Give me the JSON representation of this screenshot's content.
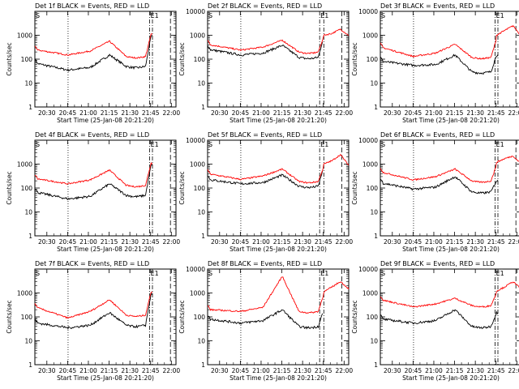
{
  "chart_data": {
    "type": "line",
    "layout": "3x3 grid",
    "xlabel": "Start Time (25-Jan-08 20:21:20)",
    "ylabel": "Counts/sec",
    "x_ticks": [
      "20:30",
      "20:45",
      "21:00",
      "21:15",
      "21:30",
      "21:45",
      "22:00"
    ],
    "x_tick_minutes": [
      8.67,
      23.67,
      38.67,
      53.67,
      68.67,
      83.67,
      98.67
    ],
    "xlim_minutes": [
      0,
      102
    ],
    "y_scale": "log",
    "ylim": [
      1,
      10000
    ],
    "y_ticks": [
      "1",
      "10",
      "100",
      "1000",
      "10000"
    ],
    "y_tick_values": [
      1,
      10,
      100,
      1000,
      10000
    ],
    "series_colors": {
      "events": "#000000",
      "lld": "#ff0000"
    },
    "marker_labels": [
      "S",
      "E"
    ],
    "panels": [
      {
        "title": "Det 1f BLACK = Events, RED = LLD",
        "top_tick": "1000",
        "markers": {
          "dotted": 24,
          "end_label": "E1",
          "dashdot": [
            83,
            85
          ],
          "dashed": 98
        },
        "events": {
          "start": 65,
          "dip1": 35,
          "mid": 45,
          "peak": 150,
          "min": 50,
          "spike": 900
        },
        "events_end_min": 85,
        "lld": {
          "start": 240,
          "dip1": 150,
          "mid": 220,
          "peak": 560,
          "min": 130,
          "spike": 1100
        },
        "lld_end_min": 85
      },
      {
        "title": "Det 2f BLACK = Events, RED = LLD",
        "top_tick": "10000",
        "markers": {
          "dotted": 24,
          "end_label": "E1",
          "dashdot": [
            81,
            84
          ],
          "dashed": 97
        },
        "events": {
          "start": 250,
          "dip1": 150,
          "mid": 180,
          "peak": 380,
          "min": 120,
          "spike": 900
        },
        "events_end_min": 83,
        "lld": {
          "start": 400,
          "dip1": 240,
          "mid": 320,
          "peak": 620,
          "min": 200,
          "spike": 900,
          "tail": [
            1000,
            1200,
            1800,
            1000
          ]
        },
        "lld_end_min": 102
      },
      {
        "title": "Det 3f BLACK = Events, RED = LLD",
        "top_tick": "10000",
        "markers": {
          "dotted": 24,
          "end_label": "E1",
          "dashdot": [
            83,
            85
          ],
          "dashed": 98
        },
        "events": {
          "start": 80,
          "dip1": 55,
          "mid": 60,
          "peak": 150,
          "min": 30,
          "spike": 150
        },
        "events_end_min": 85,
        "lld": {
          "start": 300,
          "dip1": 130,
          "mid": 180,
          "peak": 420,
          "min": 120,
          "spike": 700,
          "tail": [
            1000,
            1600,
            2500,
            900
          ]
        },
        "lld_end_min": 102
      },
      {
        "title": "Det 4f BLACK = Events, RED = LLD",
        "top_tick": "1000",
        "markers": {
          "dotted": 24,
          "end_label": "E1",
          "dashdot": [
            83,
            85
          ],
          "dashed": 98
        },
        "events": {
          "start": 65,
          "dip1": 35,
          "mid": 45,
          "peak": 150,
          "min": 50,
          "spike": 900
        },
        "events_end_min": 85,
        "lld": {
          "start": 240,
          "dip1": 150,
          "mid": 220,
          "peak": 560,
          "min": 130,
          "spike": 1100
        },
        "lld_end_min": 85
      },
      {
        "title": "Det 5f BLACK = Events, RED = LLD",
        "top_tick": "10000",
        "markers": {
          "dotted": 24,
          "end_label": "E1",
          "dashdot": [
            81,
            84
          ],
          "dashed": 97
        },
        "events": {
          "start": 220,
          "dip1": 150,
          "mid": 170,
          "peak": 350,
          "min": 120,
          "spike": 800
        },
        "events_end_min": 83,
        "lld": {
          "start": 380,
          "dip1": 230,
          "mid": 320,
          "peak": 620,
          "min": 190,
          "spike": 800,
          "tail": [
            1000,
            1400,
            2500,
            900
          ]
        },
        "lld_end_min": 102
      },
      {
        "title": "Det 6f BLACK = Events, RED = LLD",
        "top_tick": "10000",
        "markers": {
          "dotted": 24,
          "end_label": "E1",
          "dashdot": [
            83,
            85
          ],
          "dashed": 98
        },
        "events": {
          "start": 160,
          "dip1": 90,
          "mid": 110,
          "peak": 300,
          "min": 70,
          "spike": 200
        },
        "events_end_min": 85,
        "lld": {
          "start": 450,
          "dip1": 220,
          "mid": 300,
          "peak": 620,
          "min": 200,
          "spike": 900,
          "tail": [
            1200,
            1700,
            2200,
            1000
          ]
        },
        "lld_end_min": 102
      },
      {
        "title": "Det 7f BLACK = Events, RED = LLD",
        "top_tick": "1000",
        "markers": {
          "dotted": 24,
          "end_label": "E1",
          "dashdot": [
            83,
            85
          ],
          "dashed": 98
        },
        "events": {
          "start": 55,
          "dip1": 35,
          "mid": 45,
          "peak": 150,
          "min": 45,
          "spike": 900
        },
        "events_end_min": 85,
        "lld": {
          "start": 240,
          "dip1": 90,
          "mid": 170,
          "peak": 520,
          "min": 120,
          "spike": 1100
        },
        "lld_end_min": 85
      },
      {
        "title": "Det 8f BLACK = Events, RED = LLD",
        "top_tick": "10000",
        "markers": {
          "dotted": 24,
          "end_label": "E1",
          "dashdot": [
            81,
            84
          ],
          "dashed": 97
        },
        "events": {
          "start": 80,
          "dip1": 55,
          "mid": 70,
          "peak": 200,
          "min": 40,
          "spike": 200
        },
        "events_end_min": 83,
        "lld": {
          "start": 200,
          "dip1": 170,
          "mid": 250,
          "peak": 5000,
          "min": 170,
          "spike": 900,
          "tail": [
            1100,
            1800,
            3000,
            1500
          ]
        },
        "lld_end_min": 102
      },
      {
        "title": "Det 9f BLACK = Events, RED = LLD",
        "top_tick": "10000",
        "markers": {
          "dotted": 24,
          "end_label": "E1",
          "dashdot": [
            83,
            85
          ],
          "dashed": 98
        },
        "events": {
          "start": 80,
          "dip1": 55,
          "mid": 70,
          "peak": 200,
          "min": 40,
          "spike": 150
        },
        "events_end_min": 85,
        "lld": {
          "start": 500,
          "dip1": 260,
          "mid": 350,
          "peak": 600,
          "min": 300,
          "spike": 1000,
          "tail": [
            1200,
            1800,
            3000,
            1400
          ]
        },
        "lld_end_min": 102
      }
    ]
  }
}
